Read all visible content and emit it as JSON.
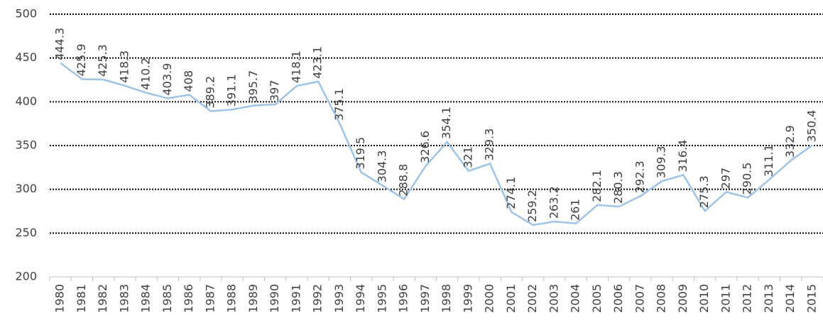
{
  "chart_data": {
    "type": "line",
    "categories": [
      "1980",
      "1981",
      "1982",
      "1983",
      "1984",
      "1985",
      "1986",
      "1987",
      "1988",
      "1989",
      "1990",
      "1991",
      "1992",
      "1993",
      "1994",
      "1995",
      "1996",
      "1997",
      "1998",
      "1999",
      "2000",
      "2001",
      "2002",
      "2003",
      "2004",
      "2005",
      "2006",
      "2007",
      "2008",
      "2009",
      "2010",
      "2011",
      "2012",
      "2013",
      "2014",
      "2015"
    ],
    "values": [
      444.3,
      425.9,
      425.3,
      418.3,
      410.2,
      403.9,
      408,
      389.2,
      391.1,
      395.7,
      397,
      418.1,
      423.1,
      375.1,
      319.5,
      304.3,
      288.8,
      326.6,
      354.1,
      321,
      329.3,
      274.1,
      259.2,
      263.2,
      261,
      282.1,
      280.3,
      292.3,
      309.3,
      316.4,
      275.3,
      297,
      290.5,
      311.1,
      332.9,
      350.4
    ],
    "color": "#9dc3e6",
    "ylim": [
      200,
      500
    ],
    "yticks": [
      200,
      250,
      300,
      350,
      400,
      450,
      500
    ],
    "grid": true
  }
}
